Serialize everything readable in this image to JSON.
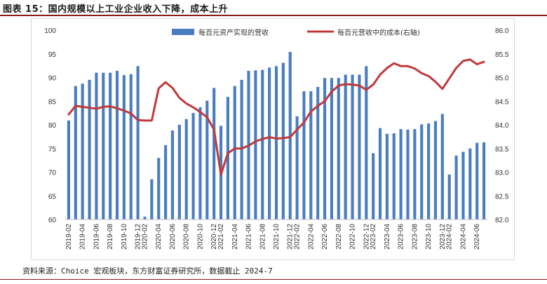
{
  "figure_title": "图表 15：国内规模以上工业企业收入下降，成本上升",
  "source": "资料来源：Choice 宏观板块，东方财富证券研究所，数据截止 2024-7",
  "colors": {
    "bar": "#4a7dc0",
    "line": "#c0393b",
    "title_rule": "#8b1a1a"
  },
  "chart_data": {
    "type": "bar+line",
    "left_axis": {
      "ylim": [
        60,
        100
      ],
      "ticks": [
        "60",
        "65",
        "70",
        "75",
        "80",
        "85",
        "90",
        "95",
        "100"
      ]
    },
    "right_axis": {
      "ylim": [
        82.0,
        86.0
      ],
      "ticks": [
        "82.0",
        "82.5",
        "83.0",
        "83.5",
        "84.0",
        "84.5",
        "85.0",
        "85.5",
        "86.0"
      ]
    },
    "x": [
      "2019-02",
      "2019-03",
      "2019-04",
      "2019-05",
      "2019-06",
      "2019-07",
      "2019-08",
      "2019-09",
      "2019-10",
      "2019-11",
      "2019-12",
      "2020-02",
      "2020-03",
      "2020-04",
      "2020-05",
      "2020-06",
      "2020-07",
      "2020-08",
      "2020-09",
      "2020-10",
      "2020-11",
      "2020-12",
      "2021-02",
      "2021-03",
      "2021-04",
      "2021-05",
      "2021-06",
      "2021-07",
      "2021-08",
      "2021-09",
      "2021-10",
      "2021-11",
      "2021-12",
      "2022-02",
      "2022-03",
      "2022-04",
      "2022-05",
      "2022-06",
      "2022-07",
      "2022-08",
      "2022-09",
      "2022-10",
      "2022-11",
      "2022-12",
      "2023-02",
      "2023-03",
      "2023-04",
      "2023-05",
      "2023-06",
      "2023-07",
      "2023-08",
      "2023-09",
      "2023-10",
      "2023-11",
      "2023-12",
      "2024-02",
      "2024-03",
      "2024-04",
      "2024-05",
      "2024-06",
      "2024-07"
    ],
    "xtick_labels": [
      "2019-02",
      "2019-04",
      "2019-06",
      "2019-08",
      "2019-10",
      "2019-12",
      "2020-02",
      "2020-04",
      "2020-06",
      "2020-08",
      "2020-10",
      "2020-12",
      "2021-02",
      "2021-04",
      "2021-06",
      "2021-08",
      "2021-10",
      "2021-12",
      "2022-02",
      "2022-04",
      "2022-06",
      "2022-08",
      "2022-10",
      "2022-12",
      "2023-02",
      "2023-04",
      "2023-06",
      "2023-08",
      "2023-10",
      "2023-12",
      "2024-02",
      "2024-04",
      "2024-06"
    ],
    "series": [
      {
        "name": "每百元资产实现的营收",
        "type": "bar",
        "axis": "left",
        "values": [
          80.9,
          88.2,
          88.7,
          89.5,
          91.0,
          91.0,
          91.0,
          91.4,
          90.5,
          90.7,
          92.4,
          60.6,
          68.5,
          73.0,
          75.7,
          78.8,
          80.0,
          81.2,
          82.5,
          83.7,
          85.1,
          87.8,
          79.8,
          85.9,
          88.2,
          89.5,
          91.4,
          91.5,
          91.6,
          92.1,
          92.4,
          93.1,
          95.4,
          81.8,
          87.1,
          87.1,
          88.0,
          89.9,
          89.9,
          89.9,
          90.6,
          90.6,
          90.6,
          92.4,
          74.0,
          79.3,
          78.1,
          78.2,
          79.1,
          79.0,
          79.1,
          80.1,
          80.3,
          80.8,
          82.3,
          69.5,
          73.5,
          74.3,
          75.0,
          76.2,
          76.3
        ]
      },
      {
        "name": "每百元营收中的成本(右轴)",
        "type": "line",
        "axis": "right",
        "values": [
          84.22,
          84.4,
          84.38,
          84.36,
          84.34,
          84.38,
          84.39,
          84.35,
          84.3,
          84.24,
          84.1,
          84.09,
          84.09,
          84.77,
          84.9,
          84.78,
          84.57,
          84.45,
          84.37,
          84.27,
          84.16,
          83.9,
          82.95,
          83.4,
          83.5,
          83.5,
          83.56,
          83.65,
          83.7,
          83.74,
          83.71,
          83.72,
          83.74,
          83.9,
          84.05,
          84.28,
          84.4,
          84.5,
          84.7,
          84.83,
          84.86,
          84.85,
          84.83,
          84.74,
          84.85,
          85.06,
          85.2,
          85.3,
          85.24,
          85.24,
          85.19,
          85.09,
          85.03,
          84.91,
          84.76,
          84.98,
          85.2,
          85.35,
          85.38,
          85.28,
          85.33
        ]
      }
    ]
  }
}
